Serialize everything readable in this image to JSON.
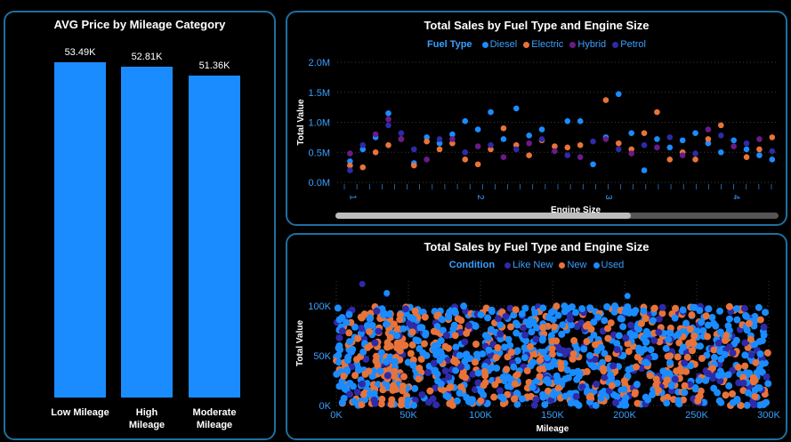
{
  "colors": {
    "bar": "#1a8cff",
    "border": "#1f6f9f",
    "fuel": {
      "Diesel": "#1a8cff",
      "Electric": "#e8733a",
      "Hybrid": "#6a1b8a",
      "Petrol": "#2e2aa8"
    },
    "condition": {
      "Like New": "#2e2aa8",
      "New": "#e8733a",
      "Used": "#1a8cff"
    }
  },
  "left_panel": {
    "title": "AVG Price by Mileage Category"
  },
  "top_right": {
    "title": "Total Sales by Fuel Type and Engine Size",
    "legend_title": "Fuel Type",
    "legend": [
      {
        "name": "Diesel",
        "color": "#1a8cff"
      },
      {
        "name": "Electric",
        "color": "#e8733a"
      },
      {
        "name": "Hybrid",
        "color": "#6a1b8a"
      },
      {
        "name": "Petrol",
        "color": "#2e2aa8"
      }
    ]
  },
  "bottom_right": {
    "title": "Total Sales by Fuel Type and Engine Size",
    "legend_title": "Condition",
    "legend": [
      {
        "name": "Like New",
        "color": "#2e2aa8"
      },
      {
        "name": "New",
        "color": "#e8733a"
      },
      {
        "name": "Used",
        "color": "#1a8cff"
      }
    ]
  },
  "chart_data": [
    {
      "type": "bar",
      "title": "AVG Price by Mileage Category",
      "categories": [
        "Low Mileage",
        "High Mileage",
        "Moderate Mileage"
      ],
      "category_lines": [
        [
          "Low Mileage"
        ],
        [
          "High",
          "Mileage"
        ],
        [
          "Moderate",
          "Mileage"
        ]
      ],
      "values": [
        53490,
        52810,
        51360
      ],
      "labels": [
        "53.49K",
        "52.81K",
        "51.36K"
      ],
      "ylim": [
        0,
        54500
      ]
    },
    {
      "type": "scatter",
      "title": "Total Sales by Fuel Type and Engine Size",
      "xlabel": "Engine Size",
      "ylabel": "Total Value",
      "ylim": [
        0,
        2000000
      ],
      "yticks": [
        "0.0M",
        "0.5M",
        "1.0M",
        "1.5M",
        "2.0M"
      ],
      "xticks": [
        "1",
        "2",
        "3",
        "4"
      ],
      "xlim": [
        0.9,
        4.35
      ],
      "grid": true,
      "legend_position": "top",
      "series": [
        {
          "name": "Diesel",
          "points": [
            [
              1.0,
              0.35
            ],
            [
              1.1,
              0.55
            ],
            [
              1.2,
              0.75
            ],
            [
              1.3,
              1.15
            ],
            [
              1.5,
              0.32
            ],
            [
              1.6,
              0.75
            ],
            [
              1.7,
              0.65
            ],
            [
              1.8,
              0.8
            ],
            [
              1.9,
              1.02
            ],
            [
              2.0,
              0.88
            ],
            [
              2.1,
              1.17
            ],
            [
              2.2,
              0.72
            ],
            [
              2.3,
              1.23
            ],
            [
              2.4,
              0.78
            ],
            [
              2.5,
              0.88
            ],
            [
              2.7,
              1.02
            ],
            [
              2.8,
              1.02
            ],
            [
              2.9,
              0.3
            ],
            [
              3.0,
              0.75
            ],
            [
              3.1,
              1.47
            ],
            [
              3.2,
              0.82
            ],
            [
              3.3,
              0.2
            ],
            [
              3.4,
              0.72
            ],
            [
              3.5,
              0.58
            ],
            [
              3.6,
              0.7
            ],
            [
              3.7,
              0.82
            ],
            [
              3.8,
              0.65
            ],
            [
              3.9,
              0.5
            ],
            [
              4.0,
              0.7
            ],
            [
              4.1,
              0.55
            ],
            [
              4.2,
              0.45
            ],
            [
              4.3,
              0.38
            ]
          ]
        },
        {
          "name": "Electric",
          "points": [
            [
              1.0,
              0.28
            ],
            [
              1.1,
              0.25
            ],
            [
              1.2,
              0.5
            ],
            [
              1.3,
              0.62
            ],
            [
              1.4,
              0.72
            ],
            [
              1.5,
              0.28
            ],
            [
              1.6,
              0.68
            ],
            [
              1.7,
              0.55
            ],
            [
              1.8,
              0.65
            ],
            [
              1.9,
              0.38
            ],
            [
              2.0,
              0.3
            ],
            [
              2.1,
              0.55
            ],
            [
              2.2,
              0.9
            ],
            [
              2.3,
              0.62
            ],
            [
              2.4,
              0.45
            ],
            [
              2.5,
              0.7
            ],
            [
              2.6,
              0.6
            ],
            [
              2.7,
              0.58
            ],
            [
              2.8,
              0.62
            ],
            [
              3.0,
              1.37
            ],
            [
              3.1,
              0.65
            ],
            [
              3.2,
              0.55
            ],
            [
              3.3,
              0.82
            ],
            [
              3.4,
              1.17
            ],
            [
              3.5,
              0.38
            ],
            [
              3.6,
              0.5
            ],
            [
              3.7,
              0.38
            ],
            [
              3.8,
              0.72
            ],
            [
              3.9,
              0.95
            ],
            [
              4.1,
              0.42
            ],
            [
              4.2,
              0.55
            ],
            [
              4.3,
              0.75
            ]
          ]
        },
        {
          "name": "Hybrid",
          "points": [
            [
              1.0,
              0.48
            ],
            [
              1.2,
              0.8
            ],
            [
              1.3,
              1.05
            ],
            [
              1.4,
              0.72
            ],
            [
              1.6,
              0.38
            ],
            [
              1.8,
              0.72
            ],
            [
              2.0,
              0.6
            ],
            [
              2.2,
              0.42
            ],
            [
              2.4,
              0.65
            ],
            [
              2.6,
              0.52
            ],
            [
              2.8,
              0.42
            ],
            [
              3.0,
              0.72
            ],
            [
              3.2,
              0.48
            ],
            [
              3.4,
              0.58
            ],
            [
              3.6,
              0.45
            ],
            [
              3.8,
              0.88
            ],
            [
              4.0,
              0.6
            ],
            [
              4.2,
              0.72
            ]
          ]
        },
        {
          "name": "Petrol",
          "points": [
            [
              1.0,
              0.2
            ],
            [
              1.1,
              0.62
            ],
            [
              1.3,
              0.95
            ],
            [
              1.4,
              0.82
            ],
            [
              1.5,
              0.55
            ],
            [
              1.7,
              0.72
            ],
            [
              1.9,
              0.5
            ],
            [
              2.1,
              0.62
            ],
            [
              2.3,
              0.55
            ],
            [
              2.5,
              0.72
            ],
            [
              2.7,
              0.45
            ],
            [
              2.9,
              0.68
            ],
            [
              3.1,
              0.55
            ],
            [
              3.3,
              0.62
            ],
            [
              3.5,
              0.75
            ],
            [
              3.7,
              0.48
            ],
            [
              3.9,
              0.78
            ],
            [
              4.1,
              0.65
            ],
            [
              4.3,
              0.52
            ]
          ]
        }
      ]
    },
    {
      "type": "scatter",
      "title": "Total Sales by Fuel Type and Engine Size",
      "xlabel": "Mileage",
      "ylabel": "Total Value",
      "xlim": [
        0,
        300000
      ],
      "ylim": [
        0,
        125000
      ],
      "xticks": [
        "0K",
        "50K",
        "100K",
        "150K",
        "200K",
        "250K",
        "300K"
      ],
      "yticks": [
        "0K",
        "50K",
        "100K"
      ],
      "grid": true,
      "legend_position": "top",
      "series": [
        {
          "name": "Like New",
          "points": [
            [
              18000,
              122000
            ],
            [
              35000,
              112000
            ]
          ],
          "cloud": {
            "x_range": [
              0,
              300000
            ],
            "y_range": [
              0,
              100000
            ]
          }
        },
        {
          "name": "New",
          "points": [],
          "cloud": {
            "x_range": [
              0,
              300000
            ],
            "y_range": [
              0,
              100000
            ]
          }
        },
        {
          "name": "Used",
          "points": [
            [
              35000,
              113000
            ],
            [
              202000,
              110000
            ]
          ],
          "cloud": {
            "x_range": [
              0,
              300000
            ],
            "y_range": [
              0,
              100000
            ]
          }
        }
      ]
    }
  ]
}
